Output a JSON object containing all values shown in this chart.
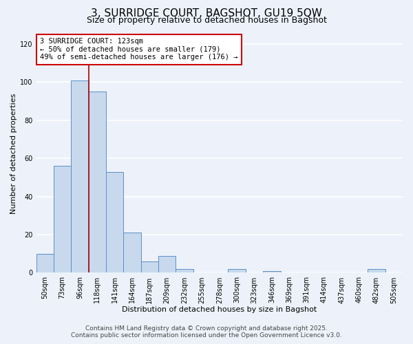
{
  "title": "3, SURRIDGE COURT, BAGSHOT, GU19 5QW",
  "subtitle": "Size of property relative to detached houses in Bagshot",
  "xlabel": "Distribution of detached houses by size in Bagshot",
  "ylabel": "Number of detached properties",
  "bar_labels": [
    "50sqm",
    "73sqm",
    "96sqm",
    "118sqm",
    "141sqm",
    "164sqm",
    "187sqm",
    "209sqm",
    "232sqm",
    "255sqm",
    "278sqm",
    "300sqm",
    "323sqm",
    "346sqm",
    "369sqm",
    "391sqm",
    "414sqm",
    "437sqm",
    "460sqm",
    "482sqm",
    "505sqm"
  ],
  "bar_values": [
    10,
    56,
    101,
    95,
    53,
    21,
    6,
    9,
    2,
    0,
    0,
    2,
    0,
    1,
    0,
    0,
    0,
    0,
    0,
    2,
    0
  ],
  "bar_color": "#c8d9ee",
  "bar_edge_color": "#5b8ec4",
  "bar_width": 1.0,
  "vline_color": "#aa0000",
  "annotation_line1": "3 SURRIDGE COURT: 123sqm",
  "annotation_line2": "← 50% of detached houses are smaller (179)",
  "annotation_line3": "49% of semi-detached houses are larger (176) →",
  "annotation_box_color": "#ffffff",
  "annotation_box_edge": "#cc0000",
  "ylim": [
    0,
    125
  ],
  "yticks": [
    0,
    20,
    40,
    60,
    80,
    100,
    120
  ],
  "footer1": "Contains HM Land Registry data © Crown copyright and database right 2025.",
  "footer2": "Contains public sector information licensed under the Open Government Licence v3.0.",
  "bg_color": "#edf2fa",
  "plot_bg_color": "#edf2fa",
  "grid_color": "#ffffff",
  "title_fontsize": 11,
  "subtitle_fontsize": 9,
  "axis_label_fontsize": 8,
  "tick_fontsize": 7,
  "annotation_fontsize": 7.5,
  "footer_fontsize": 6.5
}
